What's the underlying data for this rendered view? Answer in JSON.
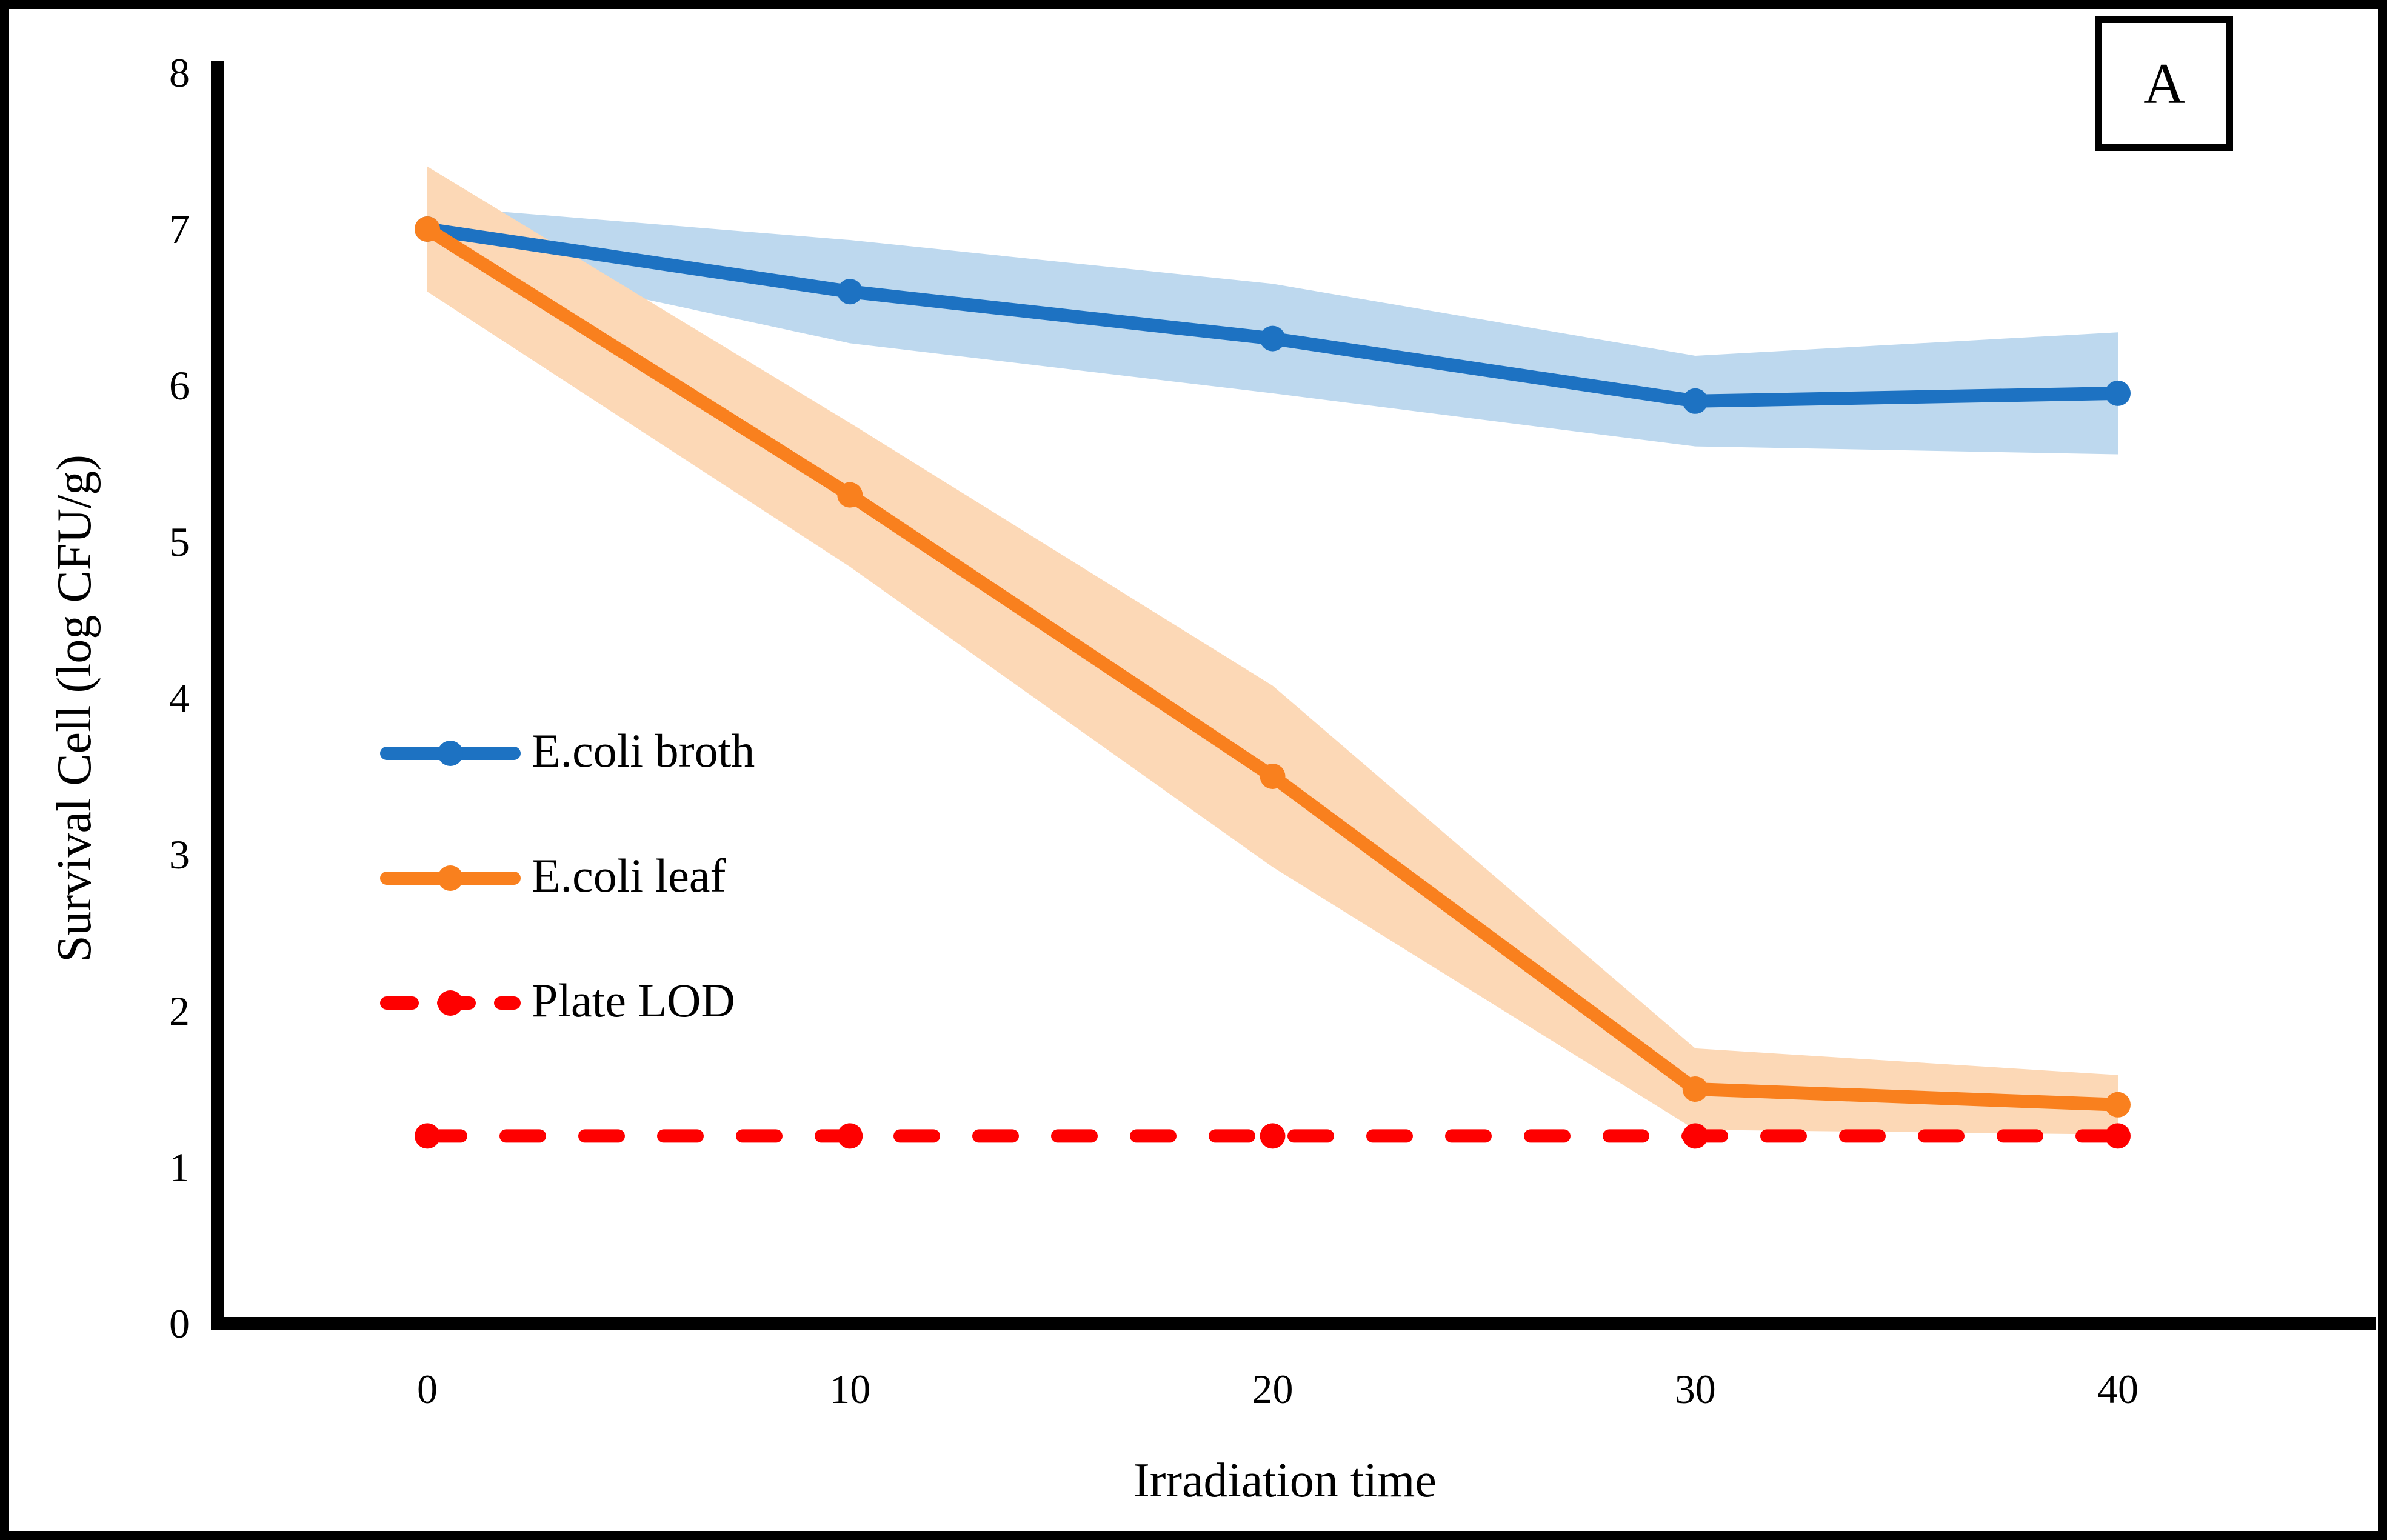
{
  "chart_data": {
    "type": "line",
    "panel_label": "A",
    "title": "",
    "xlabel": "Irradiation time",
    "ylabel": "Survival Cell (log CFU/g)",
    "x": [
      0,
      10,
      20,
      30,
      40
    ],
    "x_tick_labels": [
      "0",
      "10",
      "20",
      "30",
      "40"
    ],
    "y_tick_labels": [
      "0",
      "1",
      "2",
      "3",
      "4",
      "5",
      "6",
      "7",
      "8"
    ],
    "ylim": [
      0,
      8
    ],
    "xlim": [
      0,
      40
    ],
    "grid": false,
    "legend_position": "center-left",
    "series": [
      {
        "name": "E.coli broth",
        "type": "line-with-band",
        "line_style": "solid",
        "color": "#1d72c2",
        "band_color": "#bdd8ee",
        "values": [
          7.0,
          6.6,
          6.3,
          5.9,
          5.95
        ],
        "band_upper": [
          7.15,
          6.93,
          6.65,
          6.19,
          6.34
        ],
        "band_lower": [
          6.85,
          6.27,
          5.95,
          5.61,
          5.56
        ]
      },
      {
        "name": "E.coli leaf",
        "type": "line-with-band",
        "line_style": "solid",
        "color": "#f9801e",
        "band_color": "#fcd8b6",
        "values": [
          7.0,
          5.3,
          3.5,
          1.5,
          1.4
        ],
        "band_upper": [
          7.4,
          5.76,
          4.08,
          1.76,
          1.59
        ],
        "band_lower": [
          6.6,
          4.84,
          2.92,
          1.24,
          1.21
        ]
      },
      {
        "name": "Plate LOD",
        "type": "line",
        "line_style": "dashed",
        "color": "#fe0000",
        "values": [
          1.2,
          1.2,
          1.2,
          1.2,
          1.2
        ]
      }
    ]
  }
}
